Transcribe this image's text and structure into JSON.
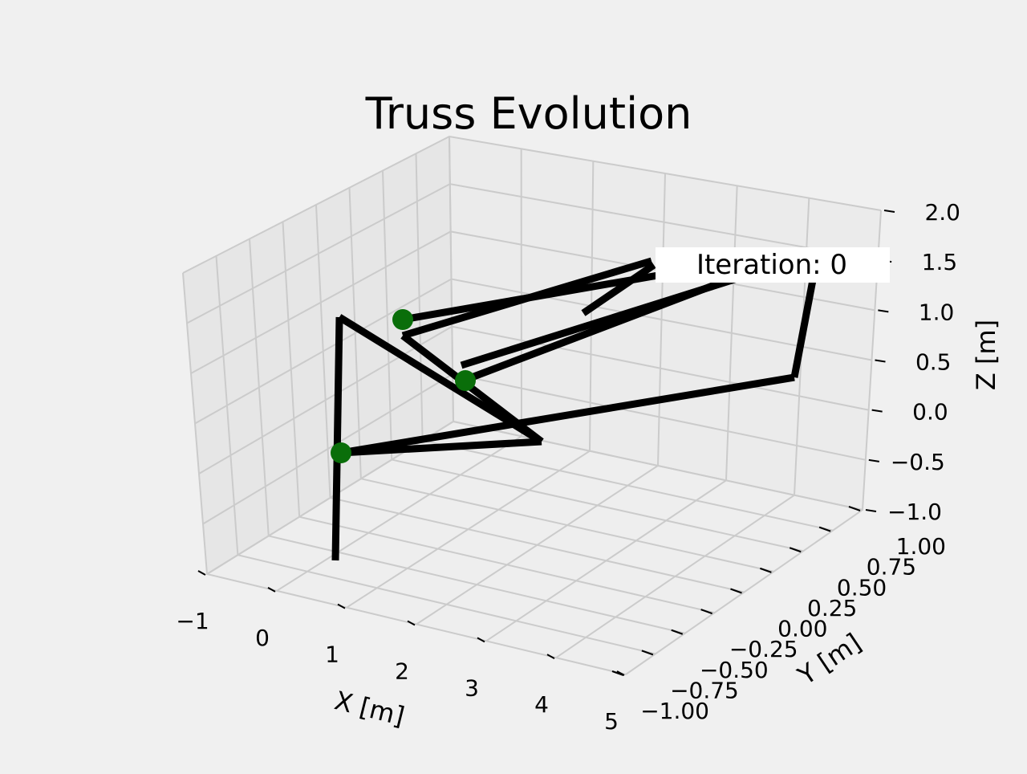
{
  "chart_data": {
    "type": "line3d",
    "title": "Truss Evolution",
    "xlabel": "X [m]",
    "ylabel": "Y [m]",
    "zlabel": "Z [m]",
    "xlim": [
      -1,
      5
    ],
    "ylim": [
      -1.0,
      1.0
    ],
    "zlim": [
      -1.0,
      2.0
    ],
    "x_ticks": [
      "−1",
      "0",
      "1",
      "2",
      "3",
      "4",
      "5"
    ],
    "y_ticks": [
      "−1.00",
      "−0.75",
      "−0.50",
      "−0.25",
      "0.00",
      "0.25",
      "0.50",
      "0.75",
      "1.00"
    ],
    "z_ticks": [
      "−1.0",
      "−0.5",
      "0.0",
      "0.5",
      "1.0",
      "1.5",
      "2.0"
    ],
    "grid": true,
    "annotation": "Iteration: 0",
    "annotation_placement": "top-right",
    "node_color": "#0a6e0a",
    "member_color": "#000000"
  }
}
